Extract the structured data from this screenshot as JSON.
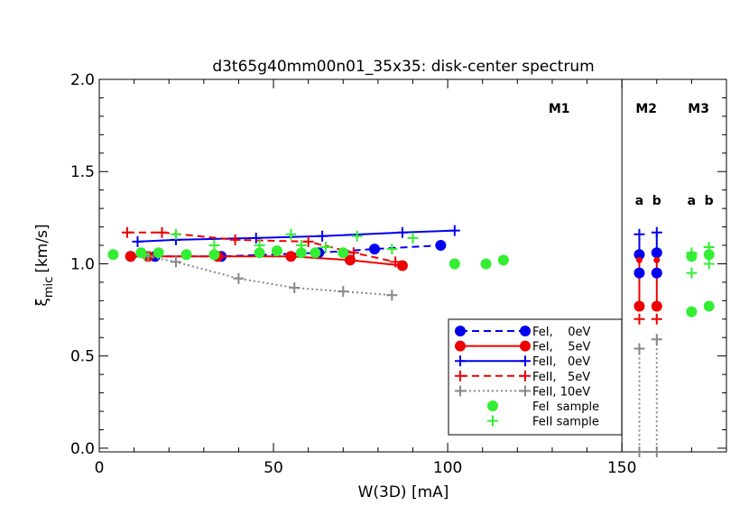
{
  "chart_data": {
    "type": "scatter",
    "title": "d3t65g40mm00n01_35x35: disk-center spectrum",
    "xlabel": "W(3D) [mA]",
    "ylabel_main": "ξ",
    "ylabel_sub": "mic",
    "ylabel_unit": "[km/s]",
    "xlim": [
      0,
      180
    ],
    "ylim": [
      -0.02,
      2.0
    ],
    "x_ticks": [
      0,
      50,
      100,
      150
    ],
    "x_tick_labels": [
      "0",
      "50",
      "100",
      "150"
    ],
    "y_ticks": [
      0.0,
      0.5,
      1.0,
      1.5,
      2.0
    ],
    "y_tick_labels": [
      "0.0",
      "0.5",
      "1.0",
      "1.5",
      "2.0"
    ],
    "divider_x": 150,
    "region_labels": [
      {
        "text": "M1",
        "x": 132,
        "y": 1.82
      },
      {
        "text": "M2",
        "x": 157,
        "y": 1.82
      },
      {
        "text": "M3",
        "x": 172,
        "y": 1.82
      }
    ],
    "sub_labels": [
      {
        "text": "a",
        "x": 155,
        "y": 1.32
      },
      {
        "text": "b",
        "x": 160,
        "y": 1.32
      },
      {
        "text": "a",
        "x": 170,
        "y": 1.32
      },
      {
        "text": "b",
        "x": 175,
        "y": 1.32
      }
    ],
    "series": [
      {
        "name": "FeI,    0eV",
        "color": "#0000ee",
        "line": "dashed",
        "marker": "circle",
        "x": [
          9,
          16,
          35,
          63,
          79,
          98
        ],
        "y": [
          1.04,
          1.04,
          1.04,
          1.06,
          1.08,
          1.1
        ]
      },
      {
        "name": "FeI,    5eV",
        "color": "#ee0000",
        "line": "solid",
        "marker": "circle",
        "x": [
          9,
          14,
          34,
          55,
          72,
          87
        ],
        "y": [
          1.04,
          1.04,
          1.04,
          1.04,
          1.02,
          0.99
        ]
      },
      {
        "name": "FeII,   0eV",
        "color": "#0000ee",
        "line": "solid",
        "marker": "plus",
        "x": [
          11,
          22,
          45,
          64,
          87,
          102
        ],
        "y": [
          1.12,
          1.13,
          1.14,
          1.15,
          1.17,
          1.18
        ]
      },
      {
        "name": "FeII,   5eV",
        "color": "#ee0000",
        "line": "dashed",
        "marker": "plus",
        "x": [
          8,
          18,
          39,
          60,
          73,
          85
        ],
        "y": [
          1.17,
          1.17,
          1.13,
          1.12,
          1.06,
          1.01
        ]
      },
      {
        "name": "FeII, 10eV",
        "color": "#888888",
        "line": "dotted",
        "marker": "plus",
        "x": [
          14,
          22,
          40,
          56,
          70,
          84
        ],
        "y": [
          1.04,
          1.01,
          0.92,
          0.87,
          0.85,
          0.83
        ]
      },
      {
        "name": "FeI  sample",
        "color": "#33ee33",
        "line": "none",
        "marker": "circle",
        "x": [
          4,
          12,
          17,
          25,
          33,
          46,
          51,
          58,
          62,
          70,
          102,
          111,
          116
        ],
        "y": [
          1.05,
          1.06,
          1.06,
          1.05,
          1.05,
          1.06,
          1.07,
          1.06,
          1.06,
          1.06,
          1.0,
          1.0,
          1.02
        ]
      },
      {
        "name": "FeII sample",
        "color": "#33ee33",
        "line": "none",
        "marker": "plus",
        "x": [
          13,
          22,
          33,
          46,
          55,
          58,
          65,
          74,
          84,
          90
        ],
        "y": [
          1.05,
          1.16,
          1.1,
          1.1,
          1.16,
          1.1,
          1.09,
          1.15,
          1.08,
          1.14
        ]
      }
    ],
    "m2_a": {
      "x": 155,
      "FeI_0eV": 0.95,
      "FeII_0eV_top": 1.16,
      "FeII_0eV_bot": 1.05,
      "FeI_5eV_top": 1.02,
      "FeI_5eV_bot": 0.77,
      "FeII_5eV": 0.7,
      "FeII_10eV_top": 0.54,
      "FeII_10eV_bot": -0.02
    },
    "m2_b": {
      "x": 160,
      "FeI_0eV": 0.95,
      "FeII_0eV_top": 1.17,
      "FeII_0eV_bot": 1.06,
      "FeI_5eV_top": 1.02,
      "FeI_5eV_bot": 0.77,
      "FeII_5eV": 0.7,
      "FeII_10eV_top": 0.59,
      "FeII_10eV_bot": -0.02
    },
    "m3_points": [
      {
        "marker": "circle",
        "x": 170,
        "y": 1.04
      },
      {
        "marker": "circle",
        "x": 170,
        "y": 0.74
      },
      {
        "marker": "circle",
        "x": 175,
        "y": 0.77
      },
      {
        "marker": "circle",
        "x": 175,
        "y": 1.05
      },
      {
        "marker": "plus",
        "x": 170,
        "y": 1.06
      },
      {
        "marker": "plus",
        "x": 170,
        "y": 0.95
      },
      {
        "marker": "plus",
        "x": 175,
        "y": 1.09
      },
      {
        "marker": "plus",
        "x": 175,
        "y": 1.0
      }
    ],
    "legend_position": "bottom-right"
  }
}
